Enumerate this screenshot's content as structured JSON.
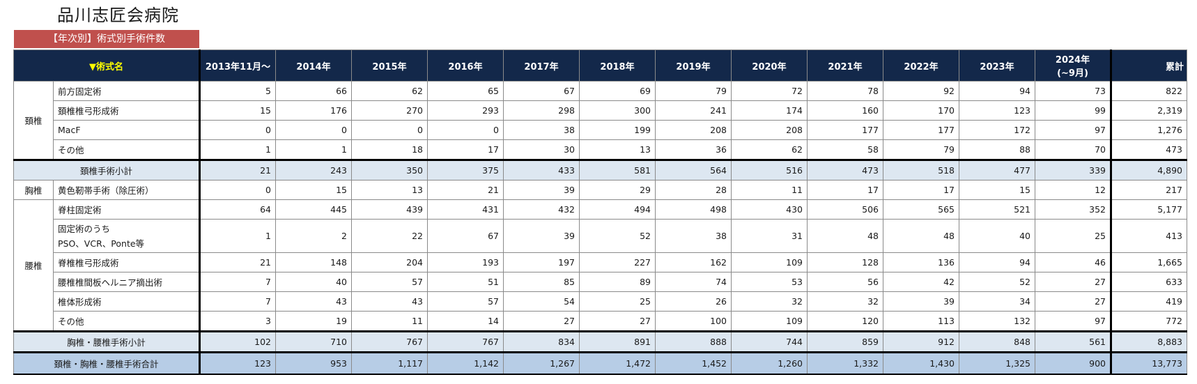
{
  "hospital_name": "品川志匠会病院",
  "table_title": "【年次別】術式別手術件数",
  "header": {
    "name_col": "▼術式名",
    "years": [
      "2013年11月～",
      "2014年",
      "2015年",
      "2016年",
      "2017年",
      "2018年",
      "2019年",
      "2020年",
      "2021年",
      "2022年",
      "2023年"
    ],
    "last_year_line1": "2024年",
    "last_year_line2": "(~9月)",
    "total": "累計"
  },
  "groups": {
    "cervical": "頚椎",
    "thoracic": "胸椎",
    "lumbar": "腰椎"
  },
  "rows": [
    {
      "label": "前方固定術",
      "values": [
        "5",
        "66",
        "62",
        "65",
        "67",
        "69",
        "79",
        "72",
        "78",
        "92",
        "94",
        "73",
        "822"
      ]
    },
    {
      "label": "頚椎椎弓形成術",
      "values": [
        "15",
        "176",
        "270",
        "293",
        "298",
        "300",
        "241",
        "174",
        "160",
        "170",
        "123",
        "99",
        "2,319"
      ]
    },
    {
      "label": "MacF",
      "values": [
        "0",
        "0",
        "0",
        "0",
        "38",
        "199",
        "208",
        "208",
        "177",
        "177",
        "172",
        "97",
        "1,276"
      ]
    },
    {
      "label": "その他",
      "values": [
        "1",
        "1",
        "18",
        "17",
        "30",
        "13",
        "36",
        "62",
        "58",
        "79",
        "88",
        "70",
        "473"
      ]
    },
    {
      "label": "頚椎手術小計",
      "values": [
        "21",
        "243",
        "350",
        "375",
        "433",
        "581",
        "564",
        "516",
        "473",
        "518",
        "477",
        "339",
        "4,890"
      ]
    },
    {
      "label": "黄色靭帯手術（除圧術）",
      "values": [
        "0",
        "15",
        "13",
        "21",
        "39",
        "29",
        "28",
        "11",
        "17",
        "17",
        "15",
        "12",
        "217"
      ]
    },
    {
      "label": "脊柱固定術",
      "values": [
        "64",
        "445",
        "439",
        "431",
        "432",
        "494",
        "498",
        "430",
        "506",
        "565",
        "521",
        "352",
        "5,177"
      ]
    },
    {
      "label": "固定術のうち",
      "label2": "PSO、VCR、Ponte等",
      "values": [
        "1",
        "2",
        "22",
        "67",
        "39",
        "52",
        "38",
        "31",
        "48",
        "48",
        "40",
        "25",
        "413"
      ]
    },
    {
      "label": "脊椎椎弓形成術",
      "values": [
        "21",
        "148",
        "204",
        "193",
        "197",
        "227",
        "162",
        "109",
        "128",
        "136",
        "94",
        "46",
        "1,665"
      ]
    },
    {
      "label": "腰椎椎間板ヘルニア摘出術",
      "values": [
        "7",
        "40",
        "57",
        "51",
        "85",
        "89",
        "74",
        "53",
        "56",
        "42",
        "52",
        "27",
        "633"
      ]
    },
    {
      "label": "椎体形成術",
      "values": [
        "7",
        "43",
        "43",
        "57",
        "54",
        "25",
        "26",
        "32",
        "32",
        "39",
        "34",
        "27",
        "419"
      ]
    },
    {
      "label": "その他",
      "values": [
        "3",
        "19",
        "11",
        "14",
        "27",
        "27",
        "100",
        "109",
        "120",
        "113",
        "132",
        "97",
        "772"
      ]
    },
    {
      "label": "胸椎・腰椎手術小計",
      "values": [
        "102",
        "710",
        "767",
        "767",
        "834",
        "891",
        "888",
        "744",
        "859",
        "912",
        "848",
        "561",
        "8,883"
      ]
    },
    {
      "label": "頚椎・胸椎・腰椎手術合計",
      "values": [
        "123",
        "953",
        "1,117",
        "1,142",
        "1,267",
        "1,472",
        "1,452",
        "1,260",
        "1,332",
        "1,430",
        "1,325",
        "900",
        "13,773"
      ]
    }
  ]
}
